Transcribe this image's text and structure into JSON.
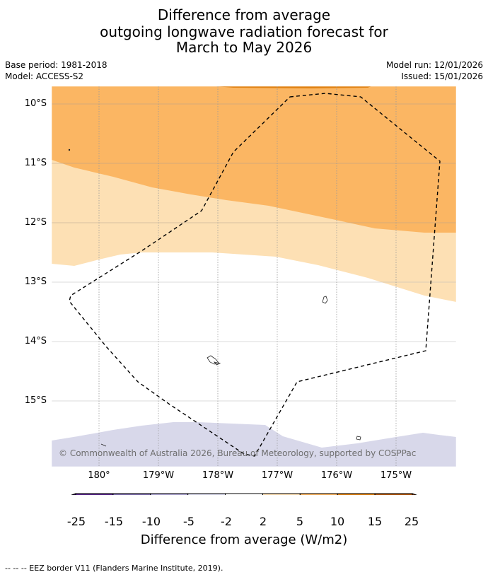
{
  "title": {
    "line1": "Difference from average",
    "line2": "outgoing longwave radiation forecast for",
    "line3": "March to May 2026"
  },
  "meta": {
    "base_period": "Base period: 1981-2018",
    "model": "Model: ACCESS-S2",
    "model_run": "Model run: 12/01/2026",
    "issued": "Issued: 15/01/2026"
  },
  "map": {
    "lat_labels": [
      "10°S",
      "11°S",
      "12°S",
      "13°S",
      "14°S",
      "15°S"
    ],
    "lon_labels": [
      "180°",
      "179°W",
      "178°W",
      "177°W",
      "176°W",
      "175°W"
    ],
    "copyright": "© Commonwealth of Australia 2026, Bureau of Meteorology, supported by COSPPac",
    "eez_border_style": "dashed"
  },
  "colorbar": {
    "ticks": [
      "-25",
      "-15",
      "-10",
      "-5",
      "-2",
      "2",
      "5",
      "10",
      "15",
      "25"
    ],
    "colors": [
      "#2f0f4f",
      "#5a2a8a",
      "#8070ad",
      "#b0a8d3",
      "#d8d8ea",
      "#ffffff",
      "#fde0b4",
      "#fbb663",
      "#e08315",
      "#b15806",
      "#7f3b08"
    ],
    "title": "Difference from average (W/m2)"
  },
  "footnote": "--  --  -- EEZ border V11 (Flanders Marine Institute, 2019)."
}
